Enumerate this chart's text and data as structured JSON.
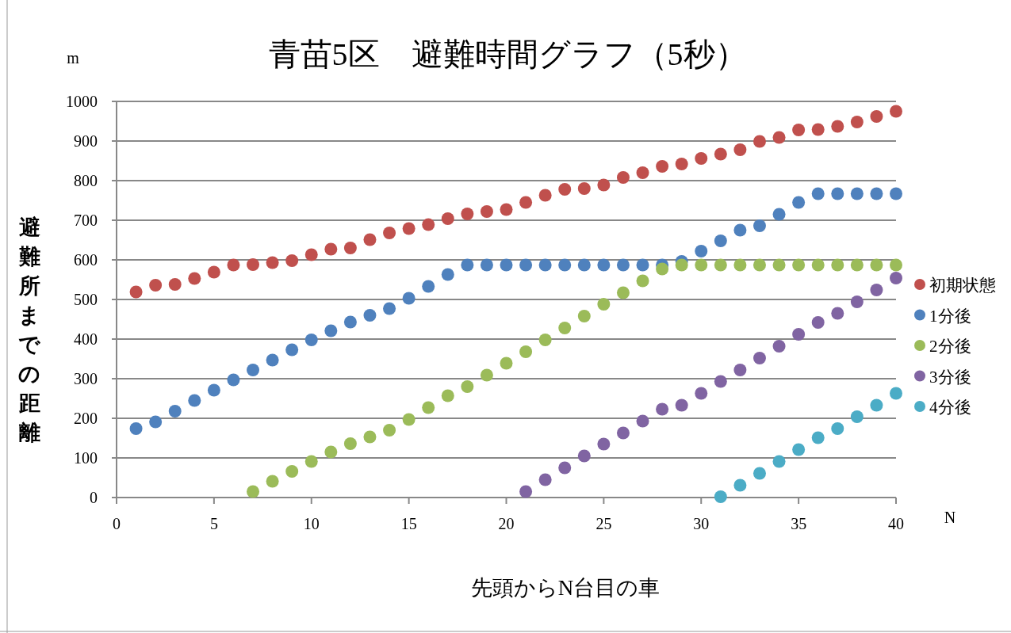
{
  "chart_data": {
    "type": "scatter",
    "title": "青苗5区　避難時間グラフ（5秒）",
    "xlabel": "先頭からN台目の車",
    "ylabel": "避難所までの距離",
    "annotations": [
      "m",
      "N"
    ],
    "x": [
      1,
      2,
      3,
      4,
      5,
      6,
      7,
      8,
      9,
      10,
      11,
      12,
      13,
      14,
      15,
      16,
      17,
      18,
      19,
      20,
      21,
      22,
      23,
      24,
      25,
      26,
      27,
      28,
      29,
      30,
      31,
      32,
      33,
      34,
      35,
      36,
      37,
      38,
      39,
      40
    ],
    "series": [
      {
        "name": "初期状態",
        "color": "#c0504d",
        "values": [
          519,
          536,
          538,
          553,
          569,
          587,
          588,
          593,
          598,
          613,
          627,
          630,
          651,
          668,
          679,
          689,
          704,
          716,
          722,
          727,
          745,
          763,
          778,
          780,
          789,
          808,
          820,
          836,
          842,
          856,
          867,
          878,
          899,
          909,
          928,
          929,
          937,
          948,
          962,
          975
        ]
      },
      {
        "name": "1分後",
        "color": "#4f81bd",
        "values": [
          174,
          191,
          218,
          245,
          271,
          297,
          322,
          347,
          373,
          398,
          421,
          443,
          460,
          477,
          503,
          533,
          563,
          587,
          587,
          587,
          587,
          587,
          587,
          587,
          587,
          587,
          587,
          587,
          596,
          622,
          648,
          675,
          686,
          715,
          745,
          767,
          767,
          767,
          767,
          767
        ]
      },
      {
        "name": "2分後",
        "color": "#9bbb59",
        "values": [
          null,
          null,
          null,
          null,
          null,
          null,
          15,
          41,
          66,
          91,
          115,
          136,
          153,
          170,
          197,
          227,
          257,
          280,
          309,
          339,
          368,
          398,
          428,
          458,
          488,
          517,
          547,
          577,
          587,
          587,
          587,
          587,
          587,
          587,
          587,
          587,
          587,
          587,
          587,
          587
        ]
      },
      {
        "name": "3分後",
        "color": "#8064a2",
        "values": [
          null,
          null,
          null,
          null,
          null,
          null,
          null,
          null,
          null,
          null,
          null,
          null,
          null,
          null,
          null,
          null,
          null,
          null,
          null,
          null,
          15,
          45,
          75,
          105,
          135,
          163,
          193,
          223,
          233,
          263,
          293,
          322,
          352,
          382,
          412,
          442,
          465,
          494,
          524,
          554
        ]
      },
      {
        "name": "4分後",
        "color": "#4bacc6",
        "values": [
          null,
          null,
          null,
          null,
          null,
          null,
          null,
          null,
          null,
          null,
          null,
          null,
          null,
          null,
          null,
          null,
          null,
          null,
          null,
          null,
          null,
          null,
          null,
          null,
          null,
          null,
          null,
          null,
          null,
          null,
          2,
          31,
          61,
          91,
          121,
          151,
          174,
          204,
          233,
          263
        ]
      }
    ],
    "xlim": [
      0,
      40
    ],
    "xticks": [
      0,
      5,
      10,
      15,
      20,
      25,
      30,
      35,
      40
    ],
    "ylim": [
      0,
      1000
    ],
    "yticks": [
      0,
      100,
      200,
      300,
      400,
      500,
      600,
      700,
      800,
      900,
      1000
    ],
    "grid": "y",
    "legend": "right",
    "marker": "circle"
  }
}
